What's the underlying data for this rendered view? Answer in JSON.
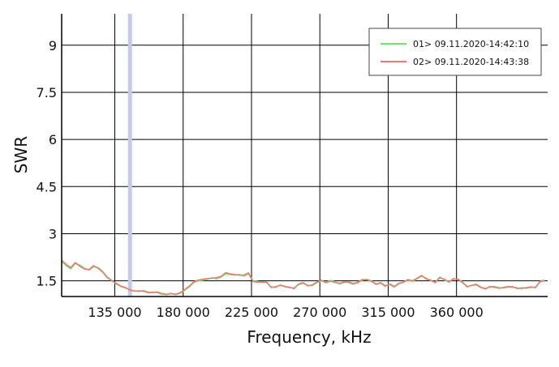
{
  "chart_data": {
    "type": "line",
    "xlabel": "Frequency, kHz",
    "ylabel": "SWR",
    "xlim": [
      100000,
      420000
    ],
    "ylim": [
      1.0,
      10.0
    ],
    "x_ticks": [
      135000,
      180000,
      225000,
      270000,
      315000,
      360000
    ],
    "x_tick_labels": [
      "135 000",
      "180 000",
      "225 000",
      "270 000",
      "315 000",
      "360 000"
    ],
    "y_ticks": [
      1.5,
      3,
      4.5,
      6,
      7.5,
      9
    ],
    "y_tick_labels": [
      "1.5",
      "3",
      "4.5",
      "6",
      "7.5",
      "9"
    ],
    "grid": true,
    "legend_position": "top-right",
    "marker_frequency": 145000,
    "marker_color": "#c8c8ec",
    "series": [
      {
        "name": "01> 09.11.2020-14:42:10",
        "color": "#66ee66",
        "x": [
          100000,
          103000,
          106000,
          109000,
          112000,
          115000,
          118000,
          121000,
          124000,
          127000,
          130000,
          133000,
          136000,
          139000,
          142000,
          145000,
          148000,
          151000,
          154000,
          157000,
          160000,
          163000,
          166000,
          169000,
          172000,
          175000,
          178000,
          181000,
          184000,
          187000,
          190000,
          193000,
          196000,
          199000,
          202000,
          205000,
          208000,
          211000,
          214000,
          217000,
          220000,
          223000,
          226000,
          229000,
          232000,
          235000,
          238000,
          241000,
          244000,
          247000,
          250000,
          253000,
          256000,
          259000,
          262000,
          265000,
          268000,
          271000,
          274000,
          277000,
          280000,
          283000,
          286000,
          289000,
          292000,
          295000,
          298000,
          301000,
          304000,
          307000,
          310000,
          313000,
          316000,
          319000,
          322000,
          325000,
          328000,
          331000,
          334000,
          337000,
          340000,
          343000,
          346000,
          349000,
          352000,
          355000,
          358000,
          361000,
          364000,
          367000,
          370000,
          373000,
          376000,
          379000,
          382000,
          385000,
          388000,
          391000,
          394000,
          397000,
          400000,
          403000,
          406000,
          409000,
          412000,
          415000,
          418000
        ],
        "values": [
          2.12,
          1.98,
          1.88,
          2.05,
          2.0,
          1.9,
          1.84,
          1.95,
          1.92,
          1.8,
          1.62,
          1.52,
          1.4,
          1.32,
          1.27,
          1.22,
          1.18,
          1.16,
          1.19,
          1.14,
          1.12,
          1.15,
          1.1,
          1.07,
          1.09,
          1.06,
          1.1,
          1.2,
          1.3,
          1.45,
          1.5,
          1.52,
          1.55,
          1.6,
          1.56,
          1.62,
          1.72,
          1.7,
          1.68,
          1.7,
          1.65,
          1.72,
          1.5,
          1.48,
          1.45,
          1.47,
          1.28,
          1.32,
          1.35,
          1.33,
          1.28,
          1.27,
          1.38,
          1.42,
          1.36,
          1.35,
          1.44,
          1.5,
          1.46,
          1.51,
          1.47,
          1.4,
          1.45,
          1.47,
          1.42,
          1.43,
          1.52,
          1.55,
          1.5,
          1.38,
          1.45,
          1.35,
          1.38,
          1.3,
          1.4,
          1.47,
          1.52,
          1.48,
          1.56,
          1.65,
          1.58,
          1.5,
          1.46,
          1.62,
          1.52,
          1.48,
          1.55,
          1.56,
          1.46,
          1.3,
          1.36,
          1.37,
          1.28,
          1.26,
          1.3,
          1.32,
          1.28,
          1.27,
          1.3,
          1.32,
          1.25,
          1.28,
          1.26,
          1.29,
          1.3,
          1.46,
          1.5
        ]
      },
      {
        "name": "02> 09.11.2020-14:43:38",
        "color": "#ee7777",
        "x": [
          100000,
          103000,
          106000,
          109000,
          112000,
          115000,
          118000,
          121000,
          124000,
          127000,
          130000,
          133000,
          136000,
          139000,
          142000,
          145000,
          148000,
          151000,
          154000,
          157000,
          160000,
          163000,
          166000,
          169000,
          172000,
          175000,
          178000,
          181000,
          184000,
          187000,
          190000,
          193000,
          196000,
          199000,
          202000,
          205000,
          208000,
          211000,
          214000,
          217000,
          220000,
          223000,
          226000,
          229000,
          232000,
          235000,
          238000,
          241000,
          244000,
          247000,
          250000,
          253000,
          256000,
          259000,
          262000,
          265000,
          268000,
          271000,
          274000,
          277000,
          280000,
          283000,
          286000,
          289000,
          292000,
          295000,
          298000,
          301000,
          304000,
          307000,
          310000,
          313000,
          316000,
          319000,
          322000,
          325000,
          328000,
          331000,
          334000,
          337000,
          340000,
          343000,
          346000,
          349000,
          352000,
          355000,
          358000,
          361000,
          364000,
          367000,
          370000,
          373000,
          376000,
          379000,
          382000,
          385000,
          388000,
          391000,
          394000,
          397000,
          400000,
          403000,
          406000,
          409000,
          412000,
          415000,
          418000
        ],
        "values": [
          2.15,
          2.02,
          1.92,
          2.08,
          1.96,
          1.88,
          1.86,
          1.98,
          1.9,
          1.78,
          1.6,
          1.5,
          1.42,
          1.33,
          1.29,
          1.2,
          1.17,
          1.18,
          1.17,
          1.12,
          1.14,
          1.13,
          1.08,
          1.06,
          1.1,
          1.07,
          1.12,
          1.22,
          1.33,
          1.47,
          1.52,
          1.55,
          1.57,
          1.58,
          1.6,
          1.64,
          1.76,
          1.72,
          1.7,
          1.68,
          1.68,
          1.75,
          1.48,
          1.46,
          1.47,
          1.45,
          1.3,
          1.3,
          1.37,
          1.31,
          1.3,
          1.25,
          1.4,
          1.44,
          1.34,
          1.37,
          1.46,
          1.52,
          1.44,
          1.49,
          1.45,
          1.42,
          1.47,
          1.45,
          1.4,
          1.46,
          1.54,
          1.53,
          1.48,
          1.4,
          1.43,
          1.33,
          1.4,
          1.32,
          1.42,
          1.45,
          1.54,
          1.5,
          1.58,
          1.67,
          1.56,
          1.52,
          1.44,
          1.6,
          1.55,
          1.46,
          1.57,
          1.54,
          1.44,
          1.32,
          1.35,
          1.39,
          1.3,
          1.24,
          1.32,
          1.3,
          1.26,
          1.29,
          1.32,
          1.3,
          1.27,
          1.26,
          1.28,
          1.31,
          1.28,
          1.48,
          1.52
        ]
      }
    ]
  }
}
